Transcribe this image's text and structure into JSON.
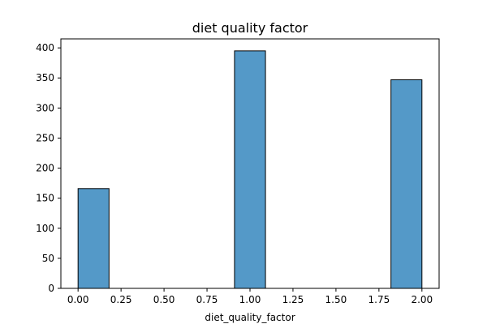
{
  "chart_data": {
    "type": "bar",
    "title": "diet quality factor",
    "xlabel": "diet_quality_factor",
    "ylabel": "",
    "grid": false,
    "bar_color": "#5499c8",
    "edge_color": "#000000",
    "xlim": [
      -0.1,
      2.1
    ],
    "ylim": [
      0,
      415
    ],
    "x_ticks": [
      0.0,
      0.25,
      0.5,
      0.75,
      1.0,
      1.25,
      1.5,
      1.75,
      2.0
    ],
    "x_tick_labels": [
      "0.00",
      "0.25",
      "0.50",
      "0.75",
      "1.00",
      "1.25",
      "1.50",
      "1.75",
      "2.00"
    ],
    "y_ticks": [
      0,
      50,
      100,
      150,
      200,
      250,
      300,
      350,
      400
    ],
    "y_tick_labels": [
      "0",
      "50",
      "100",
      "150",
      "200",
      "250",
      "300",
      "350",
      "400"
    ],
    "bars": [
      {
        "x_start": 0.0,
        "x_end": 0.18,
        "value": 166
      },
      {
        "x_start": 0.91,
        "x_end": 1.09,
        "value": 395
      },
      {
        "x_start": 1.82,
        "x_end": 2.0,
        "value": 347
      }
    ]
  }
}
